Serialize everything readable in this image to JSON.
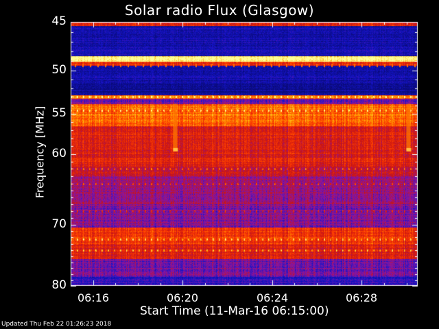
{
  "page": {
    "title": "Solar radio Flux (Glasgow)",
    "xlabel": "Start Time (11-Mar-16 06:15:00)",
    "ylabel": "Frequency [MHz]",
    "footer": "Updated Thu Feb 22 01:26:23 2018"
  },
  "chart_data": {
    "type": "heatmap",
    "title": "Solar radio Flux (Glasgow)",
    "xlabel": "Start Time (11-Mar-16 06:15:00)",
    "ylabel": "Frequency [MHz]",
    "x_unit": "time (UT)",
    "xlim": [
      "06:15:00",
      "06:30:30"
    ],
    "ylim": [
      45,
      80
    ],
    "y_inverted": true,
    "x_ticks": [
      "06:16",
      "06:20",
      "06:24",
      "06:28"
    ],
    "x_ticks_min": [
      16,
      20,
      24,
      28
    ],
    "y_ticks": [
      45,
      50,
      55,
      60,
      70,
      80
    ],
    "y_scale": "log",
    "colormap": [
      "#0a0a78",
      "#1414c8",
      "#8c14a0",
      "#c81414",
      "#ff3c00",
      "#ffaa00",
      "#ffff96"
    ],
    "intensity_bands": [
      {
        "f_start": 45.0,
        "f_end": 45.4,
        "level": 0.55
      },
      {
        "f_start": 45.4,
        "f_end": 48.5,
        "level": 0.12
      },
      {
        "f_start": 48.5,
        "f_end": 49.1,
        "level": 1.0
      },
      {
        "f_start": 49.1,
        "f_end": 49.5,
        "level": 0.6
      },
      {
        "f_start": 49.5,
        "f_end": 51.5,
        "level": 0.12
      },
      {
        "f_start": 51.5,
        "f_end": 52.8,
        "level": 0.05
      },
      {
        "f_start": 52.8,
        "f_end": 53.2,
        "level": 0.75
      },
      {
        "f_start": 53.2,
        "f_end": 53.8,
        "level": 0.3
      },
      {
        "f_start": 53.8,
        "f_end": 56.5,
        "level": 0.72
      },
      {
        "f_start": 56.5,
        "f_end": 61.5,
        "level": 0.55
      },
      {
        "f_start": 61.5,
        "f_end": 63.0,
        "level": 0.5
      },
      {
        "f_start": 63.0,
        "f_end": 67.0,
        "level": 0.38
      },
      {
        "f_start": 67.0,
        "f_end": 70.5,
        "level": 0.33
      },
      {
        "f_start": 70.5,
        "f_end": 73.0,
        "level": 0.62
      },
      {
        "f_start": 73.0,
        "f_end": 75.5,
        "level": 0.55
      },
      {
        "f_start": 75.5,
        "f_end": 78.5,
        "level": 0.3
      },
      {
        "f_start": 78.5,
        "f_end": 80.0,
        "level": 0.2
      }
    ],
    "bright_lines_mhz": [
      48.8,
      53.0,
      54.6,
      62.0,
      64.0,
      68.0,
      72.3,
      74.0
    ],
    "bursts": [
      {
        "time": "06:19:40",
        "f_start": 53.8,
        "f_end": 59.5
      },
      {
        "time": "06:30:05",
        "f_start": 53.8,
        "f_end": 59.5
      }
    ]
  }
}
